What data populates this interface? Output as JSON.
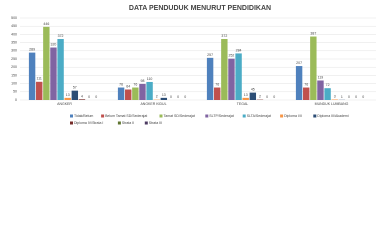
{
  "chart_data": {
    "type": "bar",
    "title": "DATA PENDUDUK MENURUT PENDIDIKAN",
    "categories": [
      "ANGKER",
      "ANGKER KIDUL",
      "TEGAL",
      "MUNDUK LUMBANG"
    ],
    "series": [
      {
        "name": "Tidak/Belum",
        "color": "#4f81bd",
        "values": [
          289,
          76,
          257,
          207
        ]
      },
      {
        "name": "Belum Tamat SD/Sederajat",
        "color": "#c0504d",
        "values": [
          111,
          64,
          76,
          76
        ]
      },
      {
        "name": "Tamat SD/Sederajat",
        "color": "#9bbb59",
        "values": [
          446,
          76,
          372,
          387
        ]
      },
      {
        "name": "SLTP/Sederajat",
        "color": "#8064a2",
        "values": [
          320,
          98,
          252,
          119
        ]
      },
      {
        "name": "SLTA/Sederajat",
        "color": "#4bacc6",
        "values": [
          372,
          110,
          284,
          72
        ]
      },
      {
        "name": "Diploma I/II",
        "color": "#f79646",
        "values": [
          13,
          2,
          13,
          3
        ]
      },
      {
        "name": "Diploma III/Akademi",
        "color": "#2c4d75",
        "values": [
          57,
          13,
          45,
          1
        ]
      },
      {
        "name": "Diploma IV/Strata I",
        "color": "#772c2a",
        "values": [
          4,
          0,
          2,
          0
        ]
      },
      {
        "name": "Strata II",
        "color": "#5f7530",
        "values": [
          0,
          0,
          0,
          0
        ]
      },
      {
        "name": "Strata III",
        "color": "#4d3b62",
        "values": [
          0,
          0,
          0,
          0
        ]
      }
    ],
    "ylim": [
      0,
      500
    ],
    "yticks": [
      0,
      50,
      100,
      150,
      200,
      250,
      300,
      350,
      400,
      450,
      500
    ],
    "grid": true
  }
}
